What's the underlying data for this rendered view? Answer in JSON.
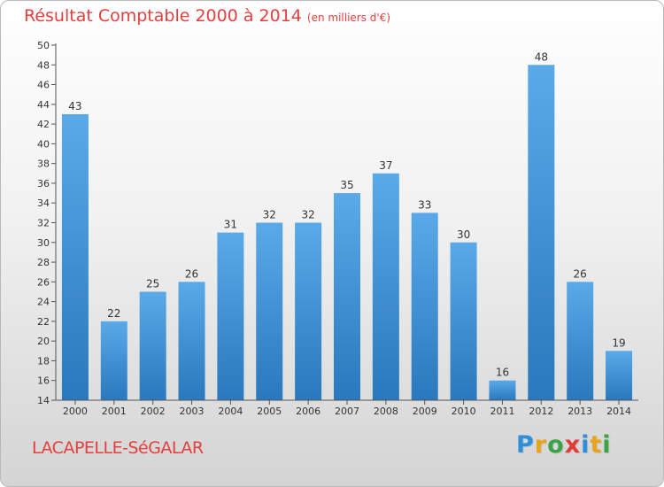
{
  "title": "Résultat Comptable 2000 à 2014",
  "unit": "(en milliers d'€)",
  "commune": "LACAPELLE-SéGALAR",
  "logo": {
    "text": "Proxiti",
    "letters": [
      {
        "ch": "P",
        "color": "#2f8fd9"
      },
      {
        "ch": "r",
        "color": "#e8a51a"
      },
      {
        "ch": "o",
        "color": "#3ca447"
      },
      {
        "ch": "x",
        "color": "#e23a36"
      },
      {
        "ch": "i",
        "color": "#2f8fd9"
      },
      {
        "ch": "t",
        "color": "#e8a51a"
      },
      {
        "ch": "i",
        "color": "#3ca447"
      }
    ]
  },
  "colors": {
    "title": "#e2403f",
    "bar_light": "#5aa9e8",
    "bar_dark": "#2a78bd",
    "axis": "#555555"
  },
  "chart_data": {
    "type": "bar",
    "title": "Résultat Comptable 2000 à 2014",
    "ylabel": "",
    "xlabel": "",
    "categories": [
      "2000",
      "2001",
      "2002",
      "2003",
      "2004",
      "2005",
      "2006",
      "2007",
      "2008",
      "2009",
      "2010",
      "2011",
      "2012",
      "2013",
      "2014"
    ],
    "values": [
      43,
      22,
      25,
      26,
      31,
      32,
      32,
      35,
      37,
      33,
      30,
      16,
      48,
      26,
      19
    ],
    "ylim": [
      14,
      50
    ],
    "yticks": [
      14,
      16,
      18,
      20,
      22,
      24,
      26,
      28,
      30,
      32,
      34,
      36,
      38,
      40,
      42,
      44,
      46,
      48,
      50
    ],
    "grid": false,
    "data_labels": true
  }
}
